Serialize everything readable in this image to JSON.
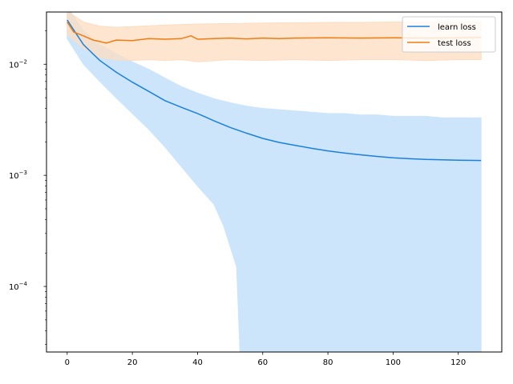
{
  "chart_data": {
    "type": "line",
    "title": "",
    "xlabel": "",
    "ylabel": "",
    "xlim": [
      -6.35,
      133.35
    ],
    "ylim_log10": [
      -4.59,
      -1.53
    ],
    "y_scale": "log",
    "grid": false,
    "legend_position": "top-right",
    "x_ticks": [
      0,
      20,
      40,
      60,
      80,
      100,
      120
    ],
    "y_ticks": [
      {
        "base": "10",
        "exp": "−2",
        "value_log10": -2
      },
      {
        "base": "10",
        "exp": "−3",
        "value_log10": -3
      },
      {
        "base": "10",
        "exp": "−4",
        "value_log10": -4
      }
    ],
    "series": [
      {
        "name": "learn loss",
        "color": "#1f77b4",
        "line_color": "#1a80e0",
        "band_color": "#cce5fb",
        "points": [
          [
            0,
            0.025
          ],
          [
            5,
            0.015
          ],
          [
            10,
            0.0108
          ],
          [
            15,
            0.0085
          ],
          [
            20,
            0.0069
          ],
          [
            25,
            0.0057
          ],
          [
            30,
            0.0047
          ],
          [
            35,
            0.0041
          ],
          [
            40,
            0.0036
          ],
          [
            45,
            0.0031
          ],
          [
            50,
            0.0027
          ],
          [
            55,
            0.0024
          ],
          [
            60,
            0.00215
          ],
          [
            65,
            0.00198
          ],
          [
            70,
            0.00186
          ],
          [
            75,
            0.00175
          ],
          [
            80,
            0.00166
          ],
          [
            85,
            0.00159
          ],
          [
            90,
            0.00153
          ],
          [
            95,
            0.00148
          ],
          [
            100,
            0.00144
          ],
          [
            105,
            0.00141
          ],
          [
            110,
            0.00139
          ],
          [
            115,
            0.00138
          ],
          [
            120,
            0.00137
          ],
          [
            127,
            0.00136
          ]
        ],
        "upper": [
          [
            0,
            0.033
          ],
          [
            5,
            0.02
          ],
          [
            10,
            0.015
          ],
          [
            15,
            0.0125
          ],
          [
            20,
            0.0105
          ],
          [
            25,
            0.009
          ],
          [
            30,
            0.0075
          ],
          [
            35,
            0.0063
          ],
          [
            40,
            0.0055
          ],
          [
            45,
            0.0049
          ],
          [
            50,
            0.0045
          ],
          [
            55,
            0.0042
          ],
          [
            60,
            0.004
          ],
          [
            65,
            0.0039
          ],
          [
            70,
            0.0038
          ],
          [
            75,
            0.0037
          ],
          [
            80,
            0.0036
          ],
          [
            85,
            0.0036
          ],
          [
            90,
            0.0035
          ],
          [
            95,
            0.0035
          ],
          [
            100,
            0.0034
          ],
          [
            105,
            0.0034
          ],
          [
            110,
            0.0034
          ],
          [
            115,
            0.0033
          ],
          [
            120,
            0.0033
          ],
          [
            127,
            0.0033
          ]
        ],
        "lower": [
          [
            0,
            0.017
          ],
          [
            5,
            0.01
          ],
          [
            10,
            0.007
          ],
          [
            15,
            0.005
          ],
          [
            20,
            0.0036
          ],
          [
            25,
            0.0026
          ],
          [
            30,
            0.0018
          ],
          [
            35,
            0.0012
          ],
          [
            40,
            0.0008
          ],
          [
            45,
            0.00055
          ],
          [
            48,
            0.00035
          ],
          [
            52,
            0.00015
          ],
          [
            53,
            2.58e-05
          ],
          [
            127,
            2.58e-05
          ]
        ]
      },
      {
        "name": "test loss",
        "color": "#ff7f0e",
        "line_color": "#f07c10",
        "band_color": "#fedcc0",
        "points": [
          [
            0,
            0.024
          ],
          [
            2,
            0.0195
          ],
          [
            5,
            0.018
          ],
          [
            8,
            0.0165
          ],
          [
            10,
            0.016
          ],
          [
            12,
            0.0155
          ],
          [
            15,
            0.0165
          ],
          [
            20,
            0.0163
          ],
          [
            25,
            0.017
          ],
          [
            30,
            0.0168
          ],
          [
            35,
            0.017
          ],
          [
            38,
            0.018
          ],
          [
            40,
            0.0168
          ],
          [
            45,
            0.017
          ],
          [
            50,
            0.0172
          ],
          [
            55,
            0.0169
          ],
          [
            60,
            0.0172
          ],
          [
            65,
            0.017
          ],
          [
            70,
            0.0172
          ],
          [
            80,
            0.0173
          ],
          [
            90,
            0.0172
          ],
          [
            100,
            0.0173
          ],
          [
            110,
            0.0172
          ],
          [
            120,
            0.0173
          ],
          [
            127,
            0.0174
          ]
        ],
        "upper": [
          [
            0,
            0.03
          ],
          [
            5,
            0.024
          ],
          [
            10,
            0.022
          ],
          [
            15,
            0.0215
          ],
          [
            20,
            0.0218
          ],
          [
            25,
            0.0222
          ],
          [
            30,
            0.0225
          ],
          [
            35,
            0.0228
          ],
          [
            40,
            0.023
          ],
          [
            50,
            0.0232
          ],
          [
            60,
            0.0235
          ],
          [
            70,
            0.0236
          ],
          [
            80,
            0.0238
          ],
          [
            90,
            0.0238
          ],
          [
            100,
            0.024
          ],
          [
            110,
            0.024
          ],
          [
            120,
            0.024
          ],
          [
            127,
            0.024
          ]
        ],
        "lower": [
          [
            0,
            0.0185
          ],
          [
            5,
            0.014
          ],
          [
            10,
            0.0115
          ],
          [
            15,
            0.011
          ],
          [
            20,
            0.0108
          ],
          [
            25,
            0.011
          ],
          [
            30,
            0.0108
          ],
          [
            35,
            0.011
          ],
          [
            40,
            0.0105
          ],
          [
            50,
            0.011
          ],
          [
            60,
            0.0108
          ],
          [
            70,
            0.011
          ],
          [
            80,
            0.0108
          ],
          [
            90,
            0.011
          ],
          [
            100,
            0.011
          ],
          [
            110,
            0.0108
          ],
          [
            120,
            0.011
          ],
          [
            127,
            0.011
          ]
        ]
      }
    ]
  }
}
